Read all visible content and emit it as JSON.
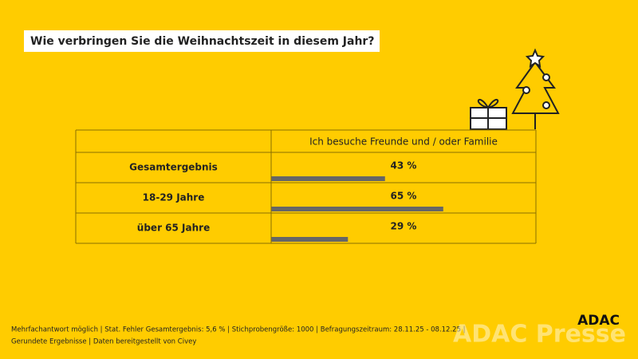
{
  "chart_data": {
    "type": "bar",
    "title": "Wie verbringen Sie die Weihnachtszeit in diesem Jahr?",
    "column_header": "Ich besuche Freunde und / oder Familie",
    "categories": [
      "Gesamtergebnis",
      "18-29 Jahre",
      "über 65 Jahre"
    ],
    "values": [
      43,
      65,
      29
    ],
    "value_labels": [
      "43 %",
      "65 %",
      "29 %"
    ],
    "xlim": [
      0,
      100
    ],
    "color": "#666666"
  },
  "footer": {
    "lines": [
      "Mehrfachantwort möglich | Stat. Fehler Gesamtergebnis: 5,6 % | Stichprobengröße: 1000 | Befragungszeitraum: 28.11.25 - 08.12.25 |",
      "Gerundete Ergebnisse | Daten bereitgestellt von Civey"
    ]
  },
  "logo": "ADAC",
  "watermark": "ADAC Presse"
}
